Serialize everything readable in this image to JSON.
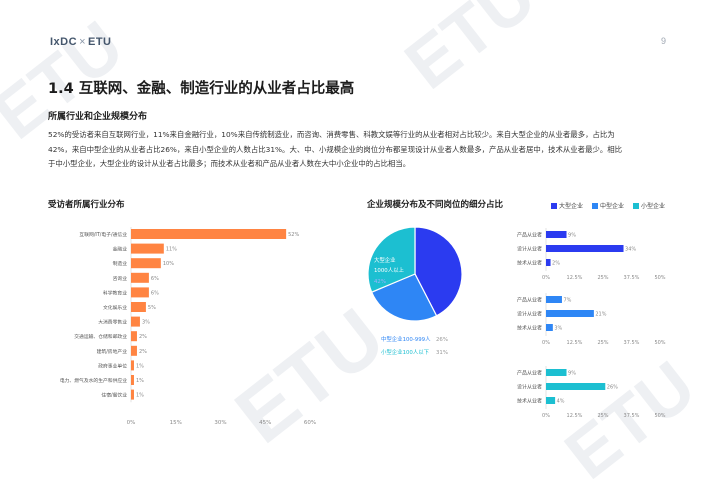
{
  "header": {
    "brand_left": "IxDC",
    "brand_sep": "×",
    "brand_right": "ETU",
    "page_number": "9"
  },
  "title": "1.4 互联网、金融、制造行业的从业者占比最高",
  "subtitle": "所属行业和企业规模分布",
  "paragraph": [
    "52%的受访者来自互联网行业，11%来自金融行业，10%来自传统制造业，而咨询、消费零售、科教文娱等行业的从业者相对占比较少。来自大型企业的从业者最多，占比为",
    "42%，来自中型企业的从业者占比26%，来自小型企业的人数占比31%。大、中、小规模企业的岗位分布都呈现设计从业者人数最多，产品从业者居中，技术从业者最少。相比",
    "于中小型企业，大型企业的设计从业者占比最多；而技术从业者和产品从业者人数在大中小企业中的占比相当。"
  ],
  "watermark": "ETU",
  "colors": {
    "orange": "#ff8442",
    "blue": "#2b3bf0",
    "mid": "#2e86f5",
    "teal": "#1cbfd1"
  },
  "chart_data": [
    {
      "type": "bar",
      "orientation": "horizontal",
      "title": "受访者所属行业分布",
      "categories": [
        "互联网/IT/电子/通信业",
        "金融业",
        "制造业",
        "咨询业",
        "科学教育业",
        "文化娱乐业",
        "大消费零售业",
        "交通运输、仓储和邮政业",
        "建筑/房地产业",
        "政府事业单位",
        "电力、燃气及水的生产和供应业",
        "住宿/餐饮业"
      ],
      "values": [
        52,
        11,
        10,
        6,
        6,
        5,
        3,
        2,
        2,
        1,
        1,
        1
      ],
      "value_labels": [
        "52%",
        "11%",
        "10%",
        "6%",
        "6%",
        "5%",
        "3%",
        "2%",
        "2%",
        "1%",
        "1%",
        "1%"
      ],
      "xticks": [
        "0%",
        "15%",
        "30%",
        "45%",
        "60%"
      ],
      "xlim": [
        0,
        60
      ],
      "color": "#ff8442"
    },
    {
      "type": "pie",
      "title": "企业规模分布及不同岗位的细分占比",
      "slices": [
        {
          "label": "大型企业",
          "sublabel": "1000人以上",
          "value": 42,
          "value_label": "42%",
          "color": "#2b3bf0"
        },
        {
          "label": "中型企业100-999人",
          "value": 26,
          "value_label": "26%",
          "color": "#2e86f5"
        },
        {
          "label": "小型企业100人以下",
          "value": 31,
          "value_label": "31%",
          "color": "#1cbfd1"
        }
      ]
    },
    {
      "type": "bar",
      "orientation": "horizontal",
      "legend": [
        "大型企业",
        "中型企业",
        "小型企业"
      ],
      "legend_colors": [
        "#2b3bf0",
        "#2e86f5",
        "#1cbfd1"
      ],
      "xticks": [
        "0%",
        "12.5%",
        "25%",
        "37.5%",
        "50%"
      ],
      "xlim": [
        0,
        50
      ],
      "groups": [
        {
          "name": "大型企业",
          "color": "#2b3bf0",
          "categories": [
            "产品从业者",
            "设计从业者",
            "技术从业者"
          ],
          "values": [
            9,
            34,
            2
          ],
          "value_labels": [
            "9%",
            "34%",
            "2%"
          ]
        },
        {
          "name": "中型企业",
          "color": "#2e86f5",
          "categories": [
            "产品从业者",
            "设计从业者",
            "技术从业者"
          ],
          "values": [
            7,
            21,
            3
          ],
          "value_labels": [
            "7%",
            "21%",
            "3%"
          ]
        },
        {
          "name": "小型企业",
          "color": "#1cbfd1",
          "categories": [
            "产品从业者",
            "设计从业者",
            "技术从业者"
          ],
          "values": [
            9,
            26,
            4
          ],
          "value_labels": [
            "9%",
            "26%",
            "4%"
          ]
        }
      ]
    }
  ]
}
